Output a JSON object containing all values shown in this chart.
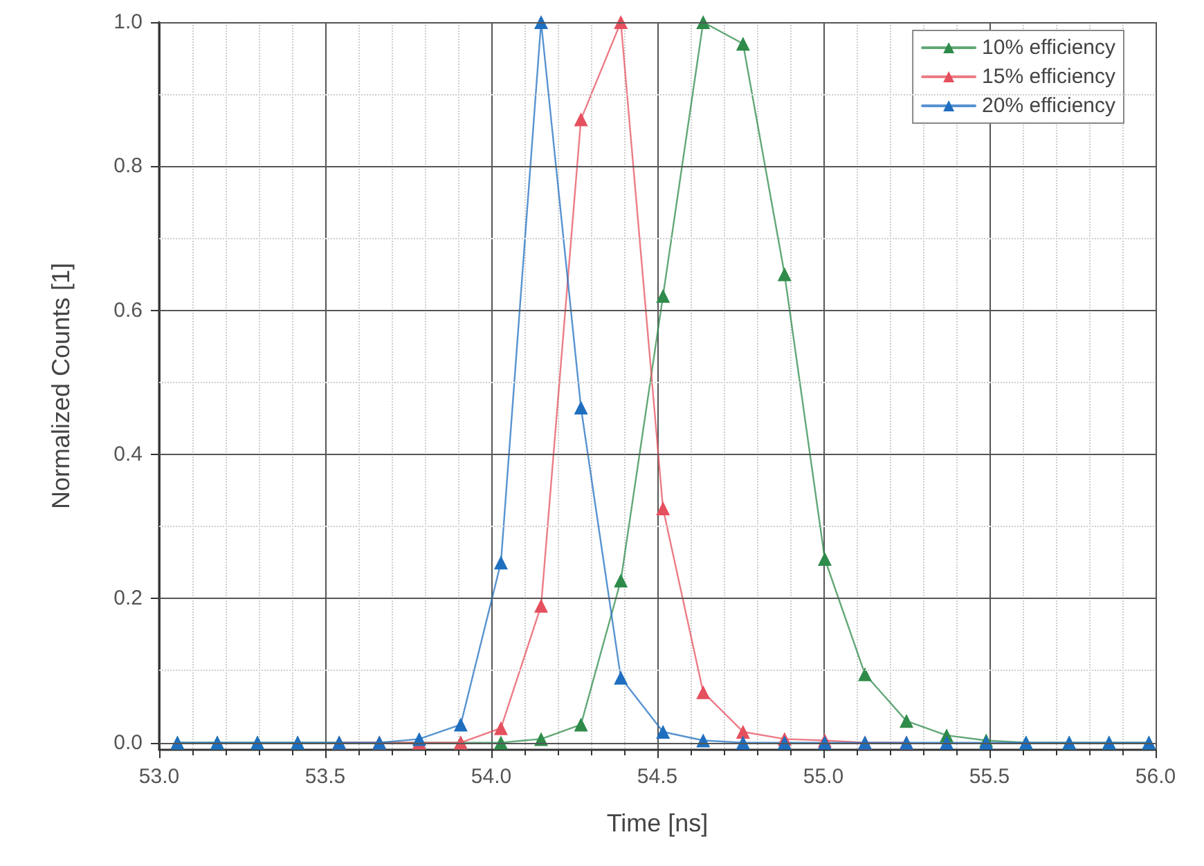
{
  "chart_data": {
    "type": "line",
    "xlabel": "Time [ns]",
    "ylabel": "Normalized Counts [1]",
    "x": [
      53.055,
      53.175,
      53.296,
      53.417,
      53.542,
      53.663,
      53.783,
      53.908,
      54.029,
      54.15,
      54.27,
      54.39,
      54.517,
      54.638,
      54.758,
      54.883,
      55.004,
      55.125,
      55.25,
      55.371,
      55.49,
      55.61,
      55.74,
      55.86,
      55.98
    ],
    "series": [
      {
        "name": "10% efficiency",
        "color": "#2e8b4a",
        "values": [
          0,
          0,
          0,
          0,
          0,
          0,
          0,
          0,
          0,
          0.005,
          0.025,
          0.225,
          0.62,
          1.0,
          0.97,
          0.65,
          0.255,
          0.095,
          0.03,
          0.01,
          0.003,
          0,
          0,
          0,
          0
        ]
      },
      {
        "name": "15% efficiency",
        "color": "#e5505e",
        "values": [
          null,
          null,
          null,
          null,
          0,
          0,
          0,
          0,
          0.02,
          0.19,
          0.865,
          1.0,
          0.325,
          0.07,
          0.015,
          0.005,
          0.003,
          0,
          0,
          null,
          null,
          null,
          null,
          null,
          null
        ]
      },
      {
        "name": "20% efficiency",
        "color": "#1f6fc0",
        "values": [
          0,
          0,
          0,
          0,
          0,
          0,
          0.005,
          0.025,
          0.25,
          1.0,
          0.465,
          0.09,
          0.015,
          0.003,
          0,
          0,
          0,
          0,
          0,
          0,
          0,
          0,
          0,
          0,
          0
        ]
      }
    ],
    "xlim": [
      53.0,
      56.0
    ],
    "xticks": [
      {
        "value": 53,
        "label": "53.0"
      },
      53.5,
      {
        "value": 54,
        "label": "54.0"
      },
      54.5,
      {
        "value": 55,
        "label": "55.0"
      },
      55.5,
      {
        "value": 56,
        "label": "56.0"
      }
    ],
    "ylim": [
      -0.01,
      1.0
    ],
    "yticks": [
      {
        "value": 0,
        "label": "0.0"
      },
      0.2,
      0.4,
      0.6,
      0.8,
      {
        "value": 1,
        "label": "1.0"
      }
    ],
    "grid": true,
    "legend": "top right",
    "marker": "triangle",
    "line_style": "solid"
  }
}
